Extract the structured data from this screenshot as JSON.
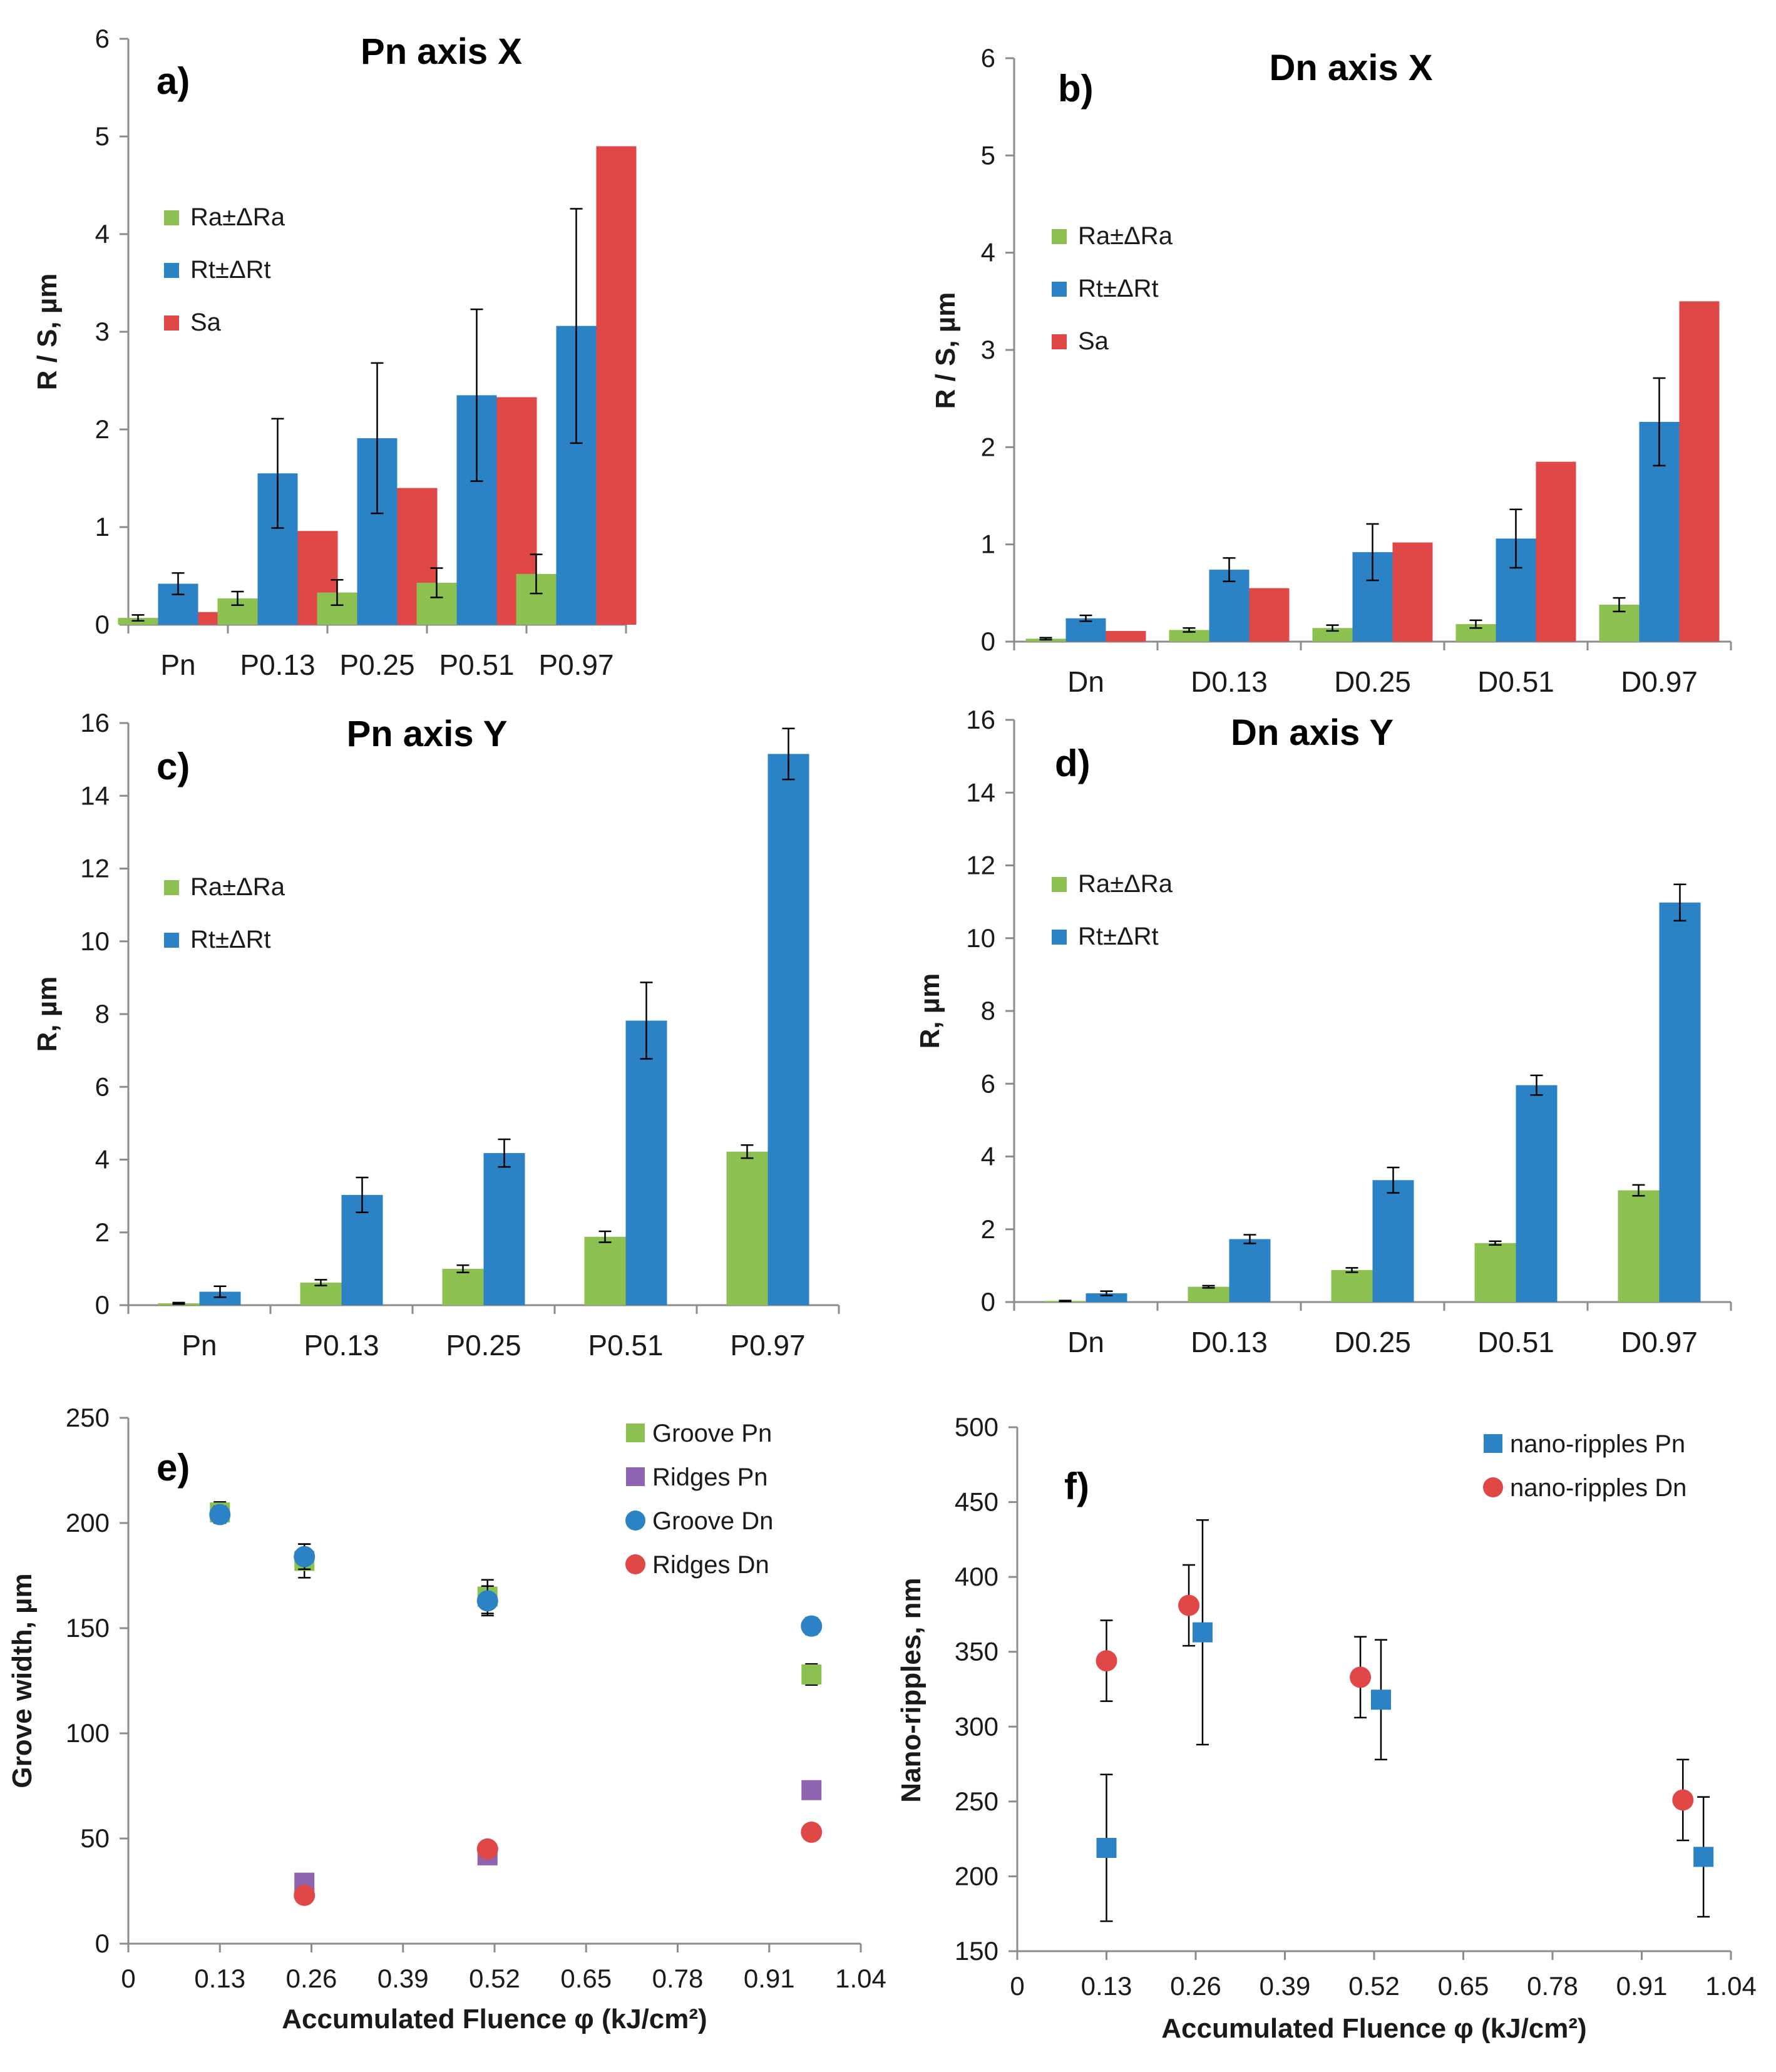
{
  "colors": {
    "green": "#8cc152",
    "blue": "#2b83c6",
    "red": "#e04848",
    "purple": "#8e63b0"
  },
  "chart_data": [
    {
      "type": "bar",
      "label": "a)",
      "title": "Pn axis X",
      "ylabel": "R / S, µm",
      "ylim": [
        0,
        6
      ],
      "yticks": [
        "0",
        "1",
        "2",
        "3",
        "4",
        "5",
        "6"
      ],
      "ytick_values": [
        0,
        1,
        2,
        3,
        4,
        5,
        6
      ],
      "categories": [
        "Pn",
        "P0.13",
        "P0.25",
        "P0.51",
        "P0.97"
      ],
      "series": [
        {
          "name": "Ra±ΔRa",
          "color": "#8cc152",
          "values": [
            0.07,
            0.27,
            0.33,
            0.43,
            0.52
          ],
          "errors": [
            0.03,
            0.07,
            0.13,
            0.15,
            0.2
          ]
        },
        {
          "name": "Rt±ΔRt",
          "color": "#2b83c6",
          "values": [
            0.42,
            1.55,
            1.91,
            2.35,
            3.06
          ],
          "errors": [
            0.11,
            0.56,
            0.77,
            0.88,
            1.2
          ]
        },
        {
          "name": "Sa",
          "color": "#e04848",
          "values": [
            0.13,
            0.96,
            1.4,
            2.33,
            4.9
          ]
        }
      ]
    },
    {
      "type": "bar",
      "label": "b)",
      "title": "Dn axis X",
      "ylabel": "R / S, µm",
      "ylim": [
        0,
        6
      ],
      "yticks": [
        "0",
        "1",
        "2",
        "3",
        "4",
        "5",
        "6"
      ],
      "ytick_values": [
        0,
        1,
        2,
        3,
        4,
        5,
        6
      ],
      "categories": [
        "Dn",
        "D0.13",
        "D0.25",
        "D0.51",
        "D0.97"
      ],
      "series": [
        {
          "name": "Ra±ΔRa",
          "color": "#8cc152",
          "values": [
            0.03,
            0.12,
            0.14,
            0.18,
            0.38
          ],
          "errors": [
            0.01,
            0.02,
            0.03,
            0.04,
            0.07
          ]
        },
        {
          "name": "Rt±ΔRt",
          "color": "#2b83c6",
          "values": [
            0.24,
            0.74,
            0.92,
            1.06,
            2.26
          ],
          "errors": [
            0.03,
            0.12,
            0.29,
            0.3,
            0.45
          ]
        },
        {
          "name": "Sa",
          "color": "#e04848",
          "values": [
            0.11,
            0.55,
            1.02,
            1.85,
            3.5
          ]
        }
      ]
    },
    {
      "type": "bar",
      "label": "c)",
      "title": "Pn axis Y",
      "ylabel": "R, µm",
      "ylim": [
        0,
        16
      ],
      "yticks": [
        "0",
        "2",
        "4",
        "6",
        "8",
        "10",
        "12",
        "14",
        "16"
      ],
      "ytick_values": [
        0,
        2,
        4,
        6,
        8,
        10,
        12,
        14,
        16
      ],
      "categories": [
        "Pn",
        "P0.13",
        "P0.25",
        "P0.51",
        "P0.97"
      ],
      "series": [
        {
          "name": "Ra±ΔRa",
          "color": "#8cc152",
          "values": [
            0.05,
            0.62,
            1.0,
            1.88,
            4.22
          ],
          "errors": [
            0.02,
            0.08,
            0.1,
            0.15,
            0.18
          ]
        },
        {
          "name": "Rt±ΔRt",
          "color": "#2b83c6",
          "values": [
            0.37,
            3.03,
            4.18,
            7.82,
            15.15
          ],
          "errors": [
            0.15,
            0.48,
            0.38,
            1.05,
            0.7
          ]
        }
      ]
    },
    {
      "type": "bar",
      "label": "d)",
      "title": "Dn axis Y",
      "ylabel": "R, µm",
      "ylim": [
        0,
        16
      ],
      "yticks": [
        "0",
        "2",
        "4",
        "6",
        "8",
        "10",
        "12",
        "14",
        "16"
      ],
      "ytick_values": [
        0,
        2,
        4,
        6,
        8,
        10,
        12,
        14,
        16
      ],
      "categories": [
        "Dn",
        "D0.13",
        "D0.25",
        "D0.51",
        "D0.97"
      ],
      "series": [
        {
          "name": "Ra±ΔRa",
          "color": "#8cc152",
          "values": [
            0.03,
            0.42,
            0.88,
            1.62,
            3.07
          ],
          "errors": [
            0.01,
            0.03,
            0.06,
            0.05,
            0.15
          ]
        },
        {
          "name": "Rt±ΔRt",
          "color": "#2b83c6",
          "values": [
            0.24,
            1.73,
            3.35,
            5.96,
            10.98
          ],
          "errors": [
            0.06,
            0.12,
            0.35,
            0.27,
            0.5
          ]
        }
      ]
    },
    {
      "type": "scatter",
      "label": "e)",
      "title": "",
      "ylabel": "Grove width, µm",
      "xlabel": "Accumulated Fluence φ (kJ/cm²)",
      "xlim": [
        0,
        1.04
      ],
      "xticks": [
        "0",
        "0.13",
        "0.26",
        "0.39",
        "0.52",
        "0.65",
        "0.78",
        "0.91",
        "1.04"
      ],
      "xtick_values": [
        0,
        0.13,
        0.26,
        0.39,
        0.52,
        0.65,
        0.78,
        0.91,
        1.04
      ],
      "ylim": [
        0,
        250
      ],
      "yticks": [
        "0",
        "50",
        "100",
        "150",
        "200",
        "250"
      ],
      "ytick_values": [
        0,
        50,
        100,
        150,
        200,
        250
      ],
      "series": [
        {
          "name": "Groove Pn",
          "marker": "square",
          "color": "#8cc152",
          "x": [
            0.13,
            0.25,
            0.51,
            0.97
          ],
          "y": [
            205,
            182,
            165,
            128
          ],
          "errors": [
            5,
            8,
            8,
            5
          ]
        },
        {
          "name": "Ridges Pn",
          "marker": "square",
          "color": "#8e63b0",
          "x": [
            0.25,
            0.51,
            0.97
          ],
          "y": [
            29,
            42,
            73
          ],
          "errors": [
            2,
            2,
            4
          ]
        },
        {
          "name": "Groove Dn",
          "marker": "circle",
          "color": "#2b83c6",
          "x": [
            0.13,
            0.25,
            0.51,
            0.97
          ],
          "y": [
            204,
            184,
            163,
            151
          ],
          "errors": [
            4,
            6,
            7,
            4
          ]
        },
        {
          "name": "Ridges Dn",
          "marker": "circle",
          "color": "#e04848",
          "x": [
            0.25,
            0.51,
            0.97
          ],
          "y": [
            23,
            45,
            53
          ],
          "errors": [
            2,
            2,
            2
          ]
        }
      ]
    },
    {
      "type": "scatter",
      "label": "f)",
      "title": "",
      "ylabel": "Nano-ripples, nm",
      "xlabel": "Accumulated Fluence φ (kJ/cm²)",
      "xlim": [
        0,
        1.04
      ],
      "xticks": [
        "0",
        "0.13",
        "0.26",
        "0.39",
        "0.52",
        "0.65",
        "0.78",
        "0.91",
        "1.04"
      ],
      "xtick_values": [
        0,
        0.13,
        0.26,
        0.39,
        0.52,
        0.65,
        0.78,
        0.91,
        1.04
      ],
      "ylim": [
        150,
        500
      ],
      "yticks": [
        "150",
        "200",
        "250",
        "300",
        "350",
        "400",
        "450",
        "500"
      ],
      "ytick_values": [
        150,
        200,
        250,
        300,
        350,
        400,
        450,
        500
      ],
      "series": [
        {
          "name": "nano-ripples Pn",
          "marker": "square",
          "color": "#2b83c6",
          "x": [
            0.13,
            0.27,
            0.53,
            1.0
          ],
          "y": [
            219,
            363,
            318,
            213
          ],
          "errors": [
            49,
            75,
            40,
            40
          ]
        },
        {
          "name": "nano-ripples Dn",
          "marker": "circle",
          "color": "#e04848",
          "x": [
            0.13,
            0.25,
            0.5,
            0.97
          ],
          "y": [
            344,
            381,
            333,
            251
          ],
          "errors": [
            27,
            27,
            27,
            27
          ]
        }
      ]
    }
  ]
}
